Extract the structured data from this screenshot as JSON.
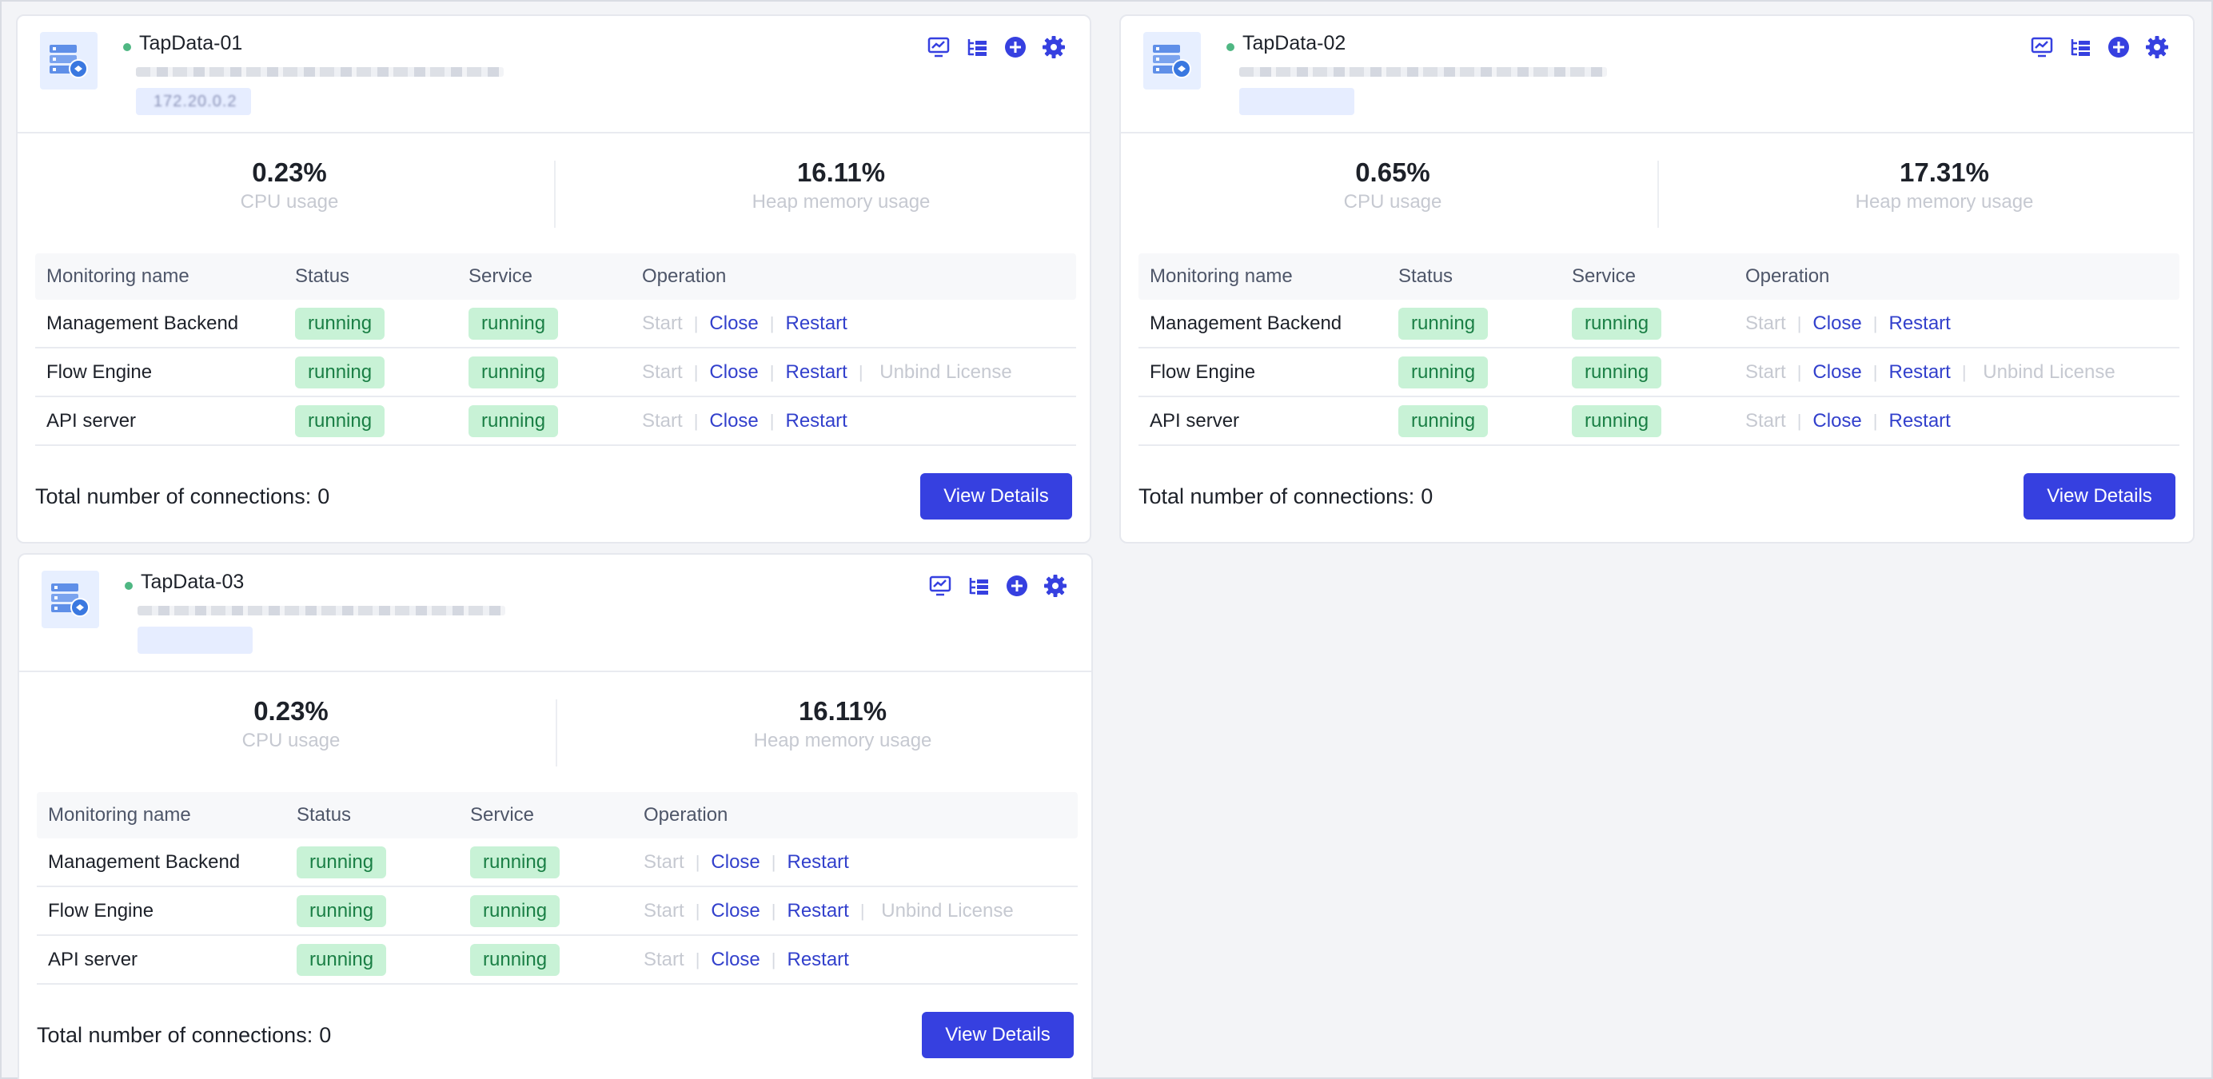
{
  "icons": {
    "server": "server-icon",
    "monitor": "monitor-chart-icon",
    "logs": "list-tree-icon",
    "add": "plus-circle-icon",
    "settings": "gear-icon"
  },
  "colors": {
    "accent": "#3640e0",
    "link": "#3240cc",
    "running_bg": "#c8f2d6",
    "running_text": "#1a7f45",
    "online_dot": "#4fb783"
  },
  "table_headers": {
    "name": "Monitoring name",
    "status": "Status",
    "service": "Service",
    "operation": "Operation"
  },
  "labels": {
    "cpu": "CPU usage",
    "heap": "Heap memory usage",
    "start": "Start",
    "close": "Close",
    "restart": "Restart",
    "unbind": "Unbind License",
    "total_connections": "Total number of connections:",
    "view_details": "View Details"
  },
  "nodes": [
    {
      "name": "TapData-01",
      "ip_blurred": "172.20.0.2",
      "cpu": "0.23%",
      "heap": "16.11%",
      "connections": "0",
      "rows": [
        {
          "name": "Management Backend",
          "status": "running",
          "service": "running"
        },
        {
          "name": "Flow Engine",
          "status": "running",
          "service": "running"
        },
        {
          "name": "API server",
          "status": "running",
          "service": "running"
        }
      ]
    },
    {
      "name": "TapData-02",
      "ip_blurred": "",
      "cpu": "0.65%",
      "heap": "17.31%",
      "connections": "0",
      "rows": [
        {
          "name": "Management Backend",
          "status": "running",
          "service": "running"
        },
        {
          "name": "Flow Engine",
          "status": "running",
          "service": "running"
        },
        {
          "name": "API server",
          "status": "running",
          "service": "running"
        }
      ]
    },
    {
      "name": "TapData-03",
      "ip_blurred": "",
      "cpu": "0.23%",
      "heap": "16.11%",
      "connections": "0",
      "rows": [
        {
          "name": "Management Backend",
          "status": "running",
          "service": "running"
        },
        {
          "name": "Flow Engine",
          "status": "running",
          "service": "running"
        },
        {
          "name": "API server",
          "status": "running",
          "service": "running"
        }
      ]
    }
  ]
}
